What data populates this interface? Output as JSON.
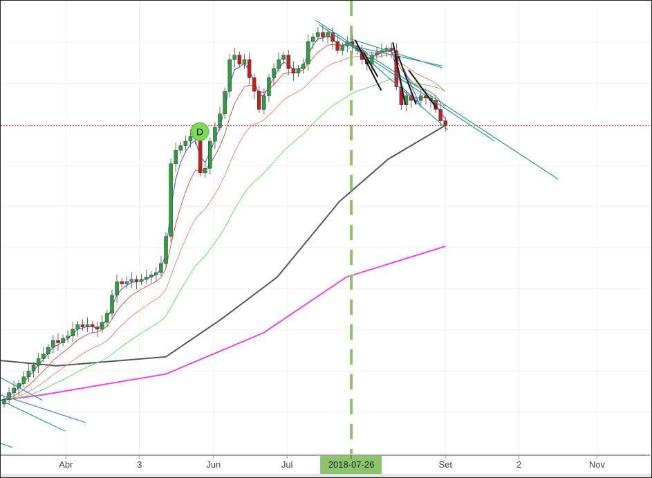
{
  "chart_data": {
    "type": "candlestick",
    "title": "",
    "xlabel": "",
    "ylabel": "",
    "ylim": [
      0,
      100
    ],
    "xlim": [
      -0.7,
      131.7
    ],
    "grid": true,
    "closes": [
      12,
      13.5,
      14.5,
      15.5,
      17,
      18.3,
      19.5,
      21,
      22,
      23.5,
      25,
      24.5,
      25.5,
      26,
      27.5,
      28.5,
      28,
      28.5,
      28,
      27.5,
      29,
      31,
      35,
      38,
      37.5,
      38,
      38.5,
      38,
      38.5,
      39,
      39.5,
      40,
      42,
      48,
      64,
      67,
      68,
      69,
      70,
      70,
      62,
      63,
      69,
      72,
      75,
      80,
      87,
      88,
      86,
      87,
      83,
      80,
      76,
      79,
      83,
      85,
      87,
      88,
      85,
      84,
      85,
      86,
      91,
      92,
      93,
      92,
      93,
      91,
      89,
      90,
      91,
      90,
      89,
      87,
      86,
      88,
      88.5,
      89,
      89.5,
      89,
      81,
      77,
      79,
      78,
      78,
      79,
      78.5,
      78,
      76,
      73.5,
      72.5
    ],
    "first_open": 11,
    "moving_averages": [
      {
        "name": "ema-fast",
        "period": 3,
        "color": "#4a4ae0"
      },
      {
        "name": "ema-short",
        "period": 8,
        "color": "#e0554a"
      },
      {
        "name": "ema-mid",
        "period": 18,
        "color": "#f08a78"
      },
      {
        "name": "ema-long",
        "period": 35,
        "color": "#66e066"
      }
    ],
    "long_series": [
      {
        "name": "ma-200",
        "color": "#555555",
        "points": [
          [
            -0.7,
            20.6
          ],
          [
            10.6,
            19.4
          ],
          [
            33,
            21.4
          ],
          [
            44.4,
            29.8
          ],
          [
            55.7,
            39
          ],
          [
            68.4,
            55.7
          ],
          [
            78.3,
            65
          ],
          [
            90,
            72.5
          ]
        ]
      },
      {
        "name": "ma-pink",
        "color": "#ee44ee",
        "points": [
          [
            -0.7,
            11.8
          ],
          [
            7.8,
            13
          ],
          [
            33,
            17.6
          ],
          [
            52.9,
            26.7
          ],
          [
            69.8,
            39
          ],
          [
            90,
            45.8
          ]
        ]
      }
    ],
    "trendlines": [
      {
        "color": "#2a9d8f",
        "from": [
          63.5,
          95.7
        ],
        "to": [
          113,
          60.6
        ]
      },
      {
        "color": "#2a9d8f",
        "from": [
          64.2,
          94.7
        ],
        "to": [
          100,
          69
        ]
      },
      {
        "color": "#2a9d8f",
        "from": [
          70.5,
          91.6
        ],
        "to": [
          89.3,
          85.2
        ]
      },
      {
        "color": "#3a8ec9",
        "from": [
          71,
          90
        ],
        "to": [
          89.3,
          85.6
        ]
      },
      {
        "color": "#2a9d8f",
        "from": [
          70,
          91
        ],
        "to": [
          90.5,
          71.5
        ]
      },
      {
        "color": "#2a9d8f",
        "from": [
          -0.7,
          16.8
        ],
        "to": [
          7.8,
          11.8
        ]
      },
      {
        "color": "#2a9d8f",
        "from": [
          -0.7,
          11.8
        ],
        "to": [
          12.4,
          5
        ]
      },
      {
        "color": "#4a7fe0",
        "from": [
          -0.7,
          13
        ],
        "to": [
          16.6,
          6.9
        ]
      },
      {
        "color": "#2a9d8f",
        "from": [
          -0.7,
          2.3
        ],
        "to": [
          1.7,
          1.4
        ]
      },
      {
        "color": "#111111",
        "from": [
          71.6,
          91.3
        ],
        "to": [
          76.9,
          80.2
        ]
      },
      {
        "color": "#111111",
        "from": [
          73.4,
          88.5
        ],
        "to": [
          76.2,
          83.2
        ]
      },
      {
        "color": "#111111",
        "from": [
          79.3,
          90.8
        ],
        "to": [
          81.8,
          77.1
        ]
      },
      {
        "color": "#111111",
        "from": [
          80.4,
          87.8
        ],
        "to": [
          84,
          77.1
        ]
      },
      {
        "color": "#3a6fd0",
        "from": [
          81.5,
          85
        ],
        "to": [
          85,
          76.5
        ]
      },
      {
        "color": "#111111",
        "from": [
          82.5,
          84.7
        ],
        "to": [
          88.2,
          76.3
        ]
      }
    ],
    "event_marker": {
      "label": "D",
      "index": 39.9,
      "value": 71.1,
      "color": "#7ed957"
    },
    "vline": {
      "index": 70.8,
      "label": "2018-07-26",
      "color": "#8cc46e"
    },
    "last_price_line": {
      "value": 72.4,
      "color": "#e03030"
    },
    "x_ticks": [
      {
        "label": "Abr",
        "index": 12.6
      },
      {
        "label": "3",
        "index": 27.6
      },
      {
        "label": "Jun",
        "index": 42.7
      },
      {
        "label": "Jul",
        "index": 57.7
      },
      {
        "label": "Set",
        "index": 90
      },
      {
        "label": "2",
        "index": 105
      },
      {
        "label": "Nov",
        "index": 120.9
      }
    ],
    "up_color": "#2e9e3e",
    "down_color": "#c0201e"
  }
}
